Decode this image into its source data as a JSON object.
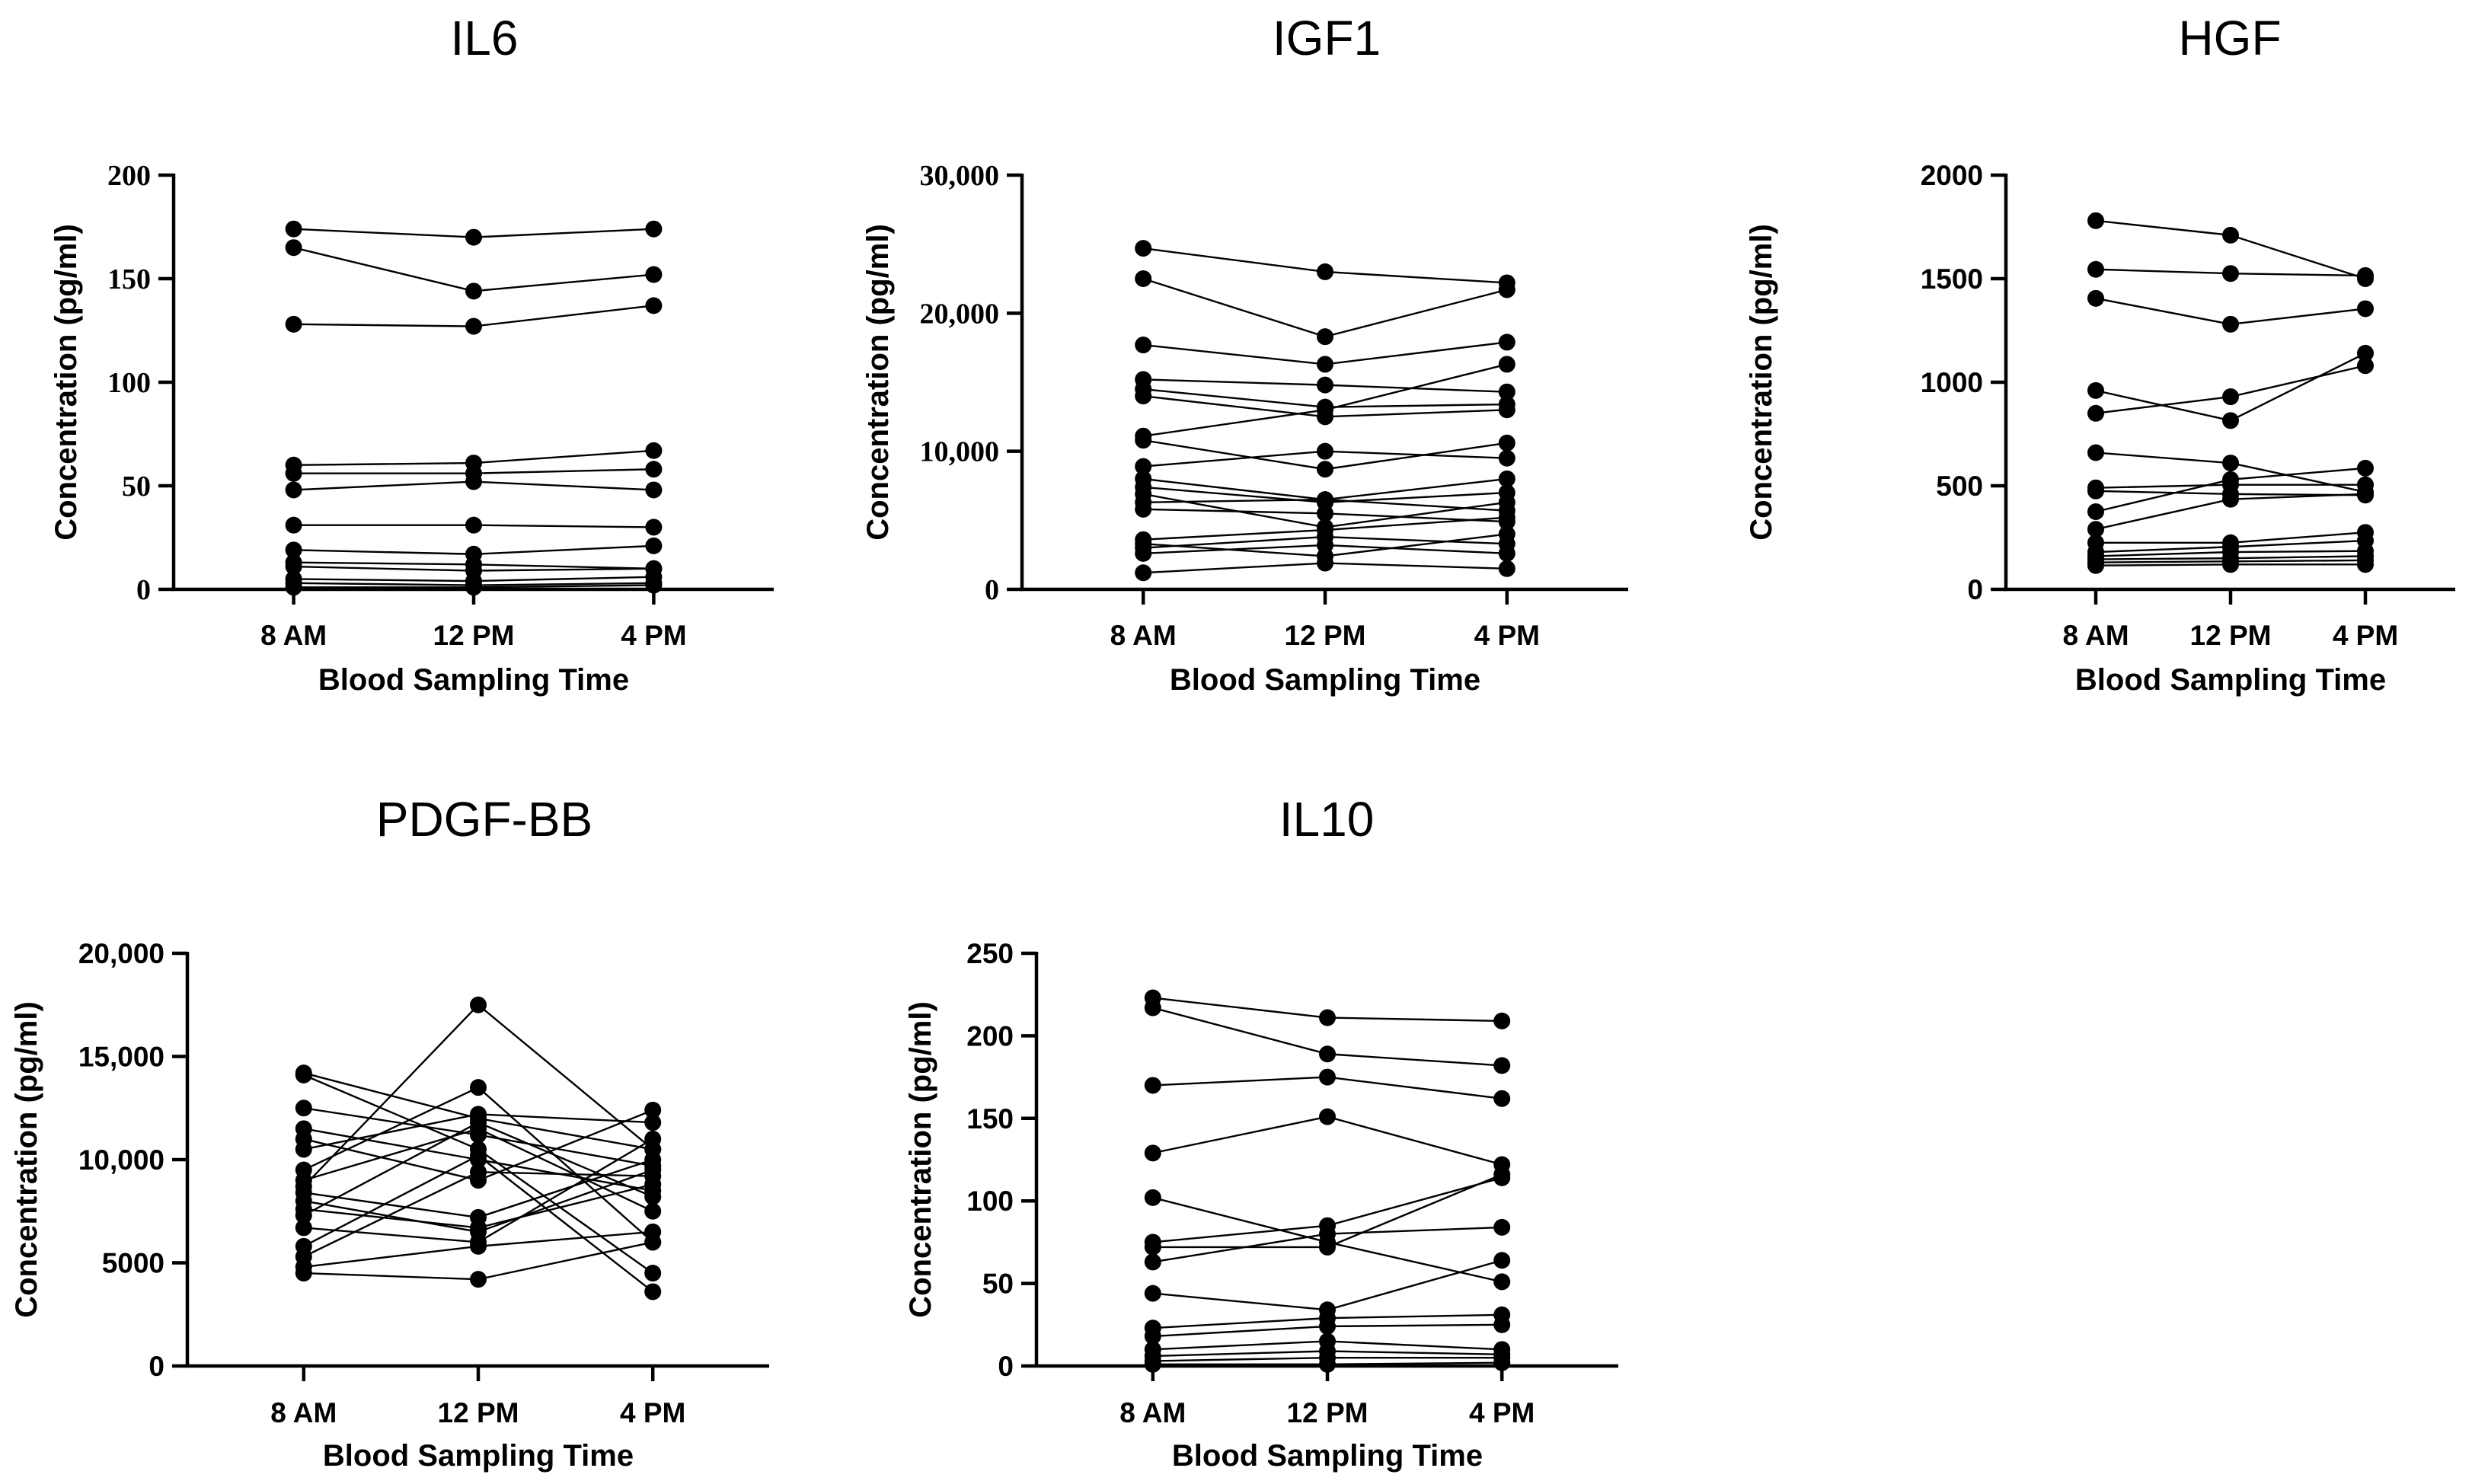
{
  "chart_data": [
    {
      "type": "line",
      "title": "IL6",
      "xlabel": "Blood Sampling Time",
      "ylabel": "Concentration (pg/ml)",
      "categories": [
        "8 AM",
        "12 PM",
        "4 PM"
      ],
      "ylim": [
        0,
        200
      ],
      "yticks": [
        0,
        50,
        100,
        150,
        200
      ],
      "ytick_labels": [
        "0",
        "50",
        "100",
        "150",
        "200"
      ],
      "series": [
        {
          "values": [
            174,
            170,
            174
          ]
        },
        {
          "values": [
            165,
            144,
            152
          ]
        },
        {
          "values": [
            128,
            127,
            137
          ]
        },
        {
          "values": [
            60,
            61,
            67
          ]
        },
        {
          "values": [
            56,
            56,
            58
          ]
        },
        {
          "values": [
            48,
            52,
            48
          ]
        },
        {
          "values": [
            31,
            31,
            30
          ]
        },
        {
          "values": [
            19,
            17,
            21
          ]
        },
        {
          "values": [
            13,
            12,
            10
          ]
        },
        {
          "values": [
            11,
            9,
            10
          ]
        },
        {
          "values": [
            5,
            4,
            6
          ]
        },
        {
          "values": [
            3,
            2,
            3
          ]
        },
        {
          "values": [
            1,
            1,
            2
          ]
        }
      ]
    },
    {
      "type": "line",
      "title": "IGF1",
      "xlabel": "Blood Sampling Time",
      "ylabel": "Concentration (pg/ml)",
      "categories": [
        "8 AM",
        "12 PM",
        "4 PM"
      ],
      "ylim": [
        0,
        30000
      ],
      "yticks": [
        0,
        10000,
        20000,
        30000
      ],
      "ytick_labels": [
        "0",
        "10,000",
        "20,000",
        "30,000"
      ],
      "series": [
        {
          "values": [
            24700,
            23000,
            22200
          ]
        },
        {
          "values": [
            22500,
            18300,
            21700
          ]
        },
        {
          "values": [
            17700,
            16300,
            17900
          ]
        },
        {
          "values": [
            15200,
            14800,
            14300
          ]
        },
        {
          "values": [
            14500,
            13200,
            13400
          ]
        },
        {
          "values": [
            14000,
            12500,
            13000
          ]
        },
        {
          "values": [
            11100,
            13000,
            16300
          ]
        },
        {
          "values": [
            10800,
            8700,
            10600
          ]
        },
        {
          "values": [
            8900,
            10000,
            9500
          ]
        },
        {
          "values": [
            8000,
            6500,
            8000
          ]
        },
        {
          "values": [
            7400,
            6300,
            7000
          ]
        },
        {
          "values": [
            6900,
            4500,
            6300
          ]
        },
        {
          "values": [
            6300,
            6500,
            5700
          ]
        },
        {
          "values": [
            5800,
            5500,
            4900
          ]
        },
        {
          "values": [
            3600,
            4300,
            5200
          ]
        },
        {
          "values": [
            3300,
            2400,
            4000
          ]
        },
        {
          "values": [
            3000,
            3800,
            3300
          ]
        },
        {
          "values": [
            2600,
            3200,
            2600
          ]
        },
        {
          "values": [
            1200,
            1900,
            1500
          ]
        }
      ]
    },
    {
      "type": "line",
      "title": "HGF",
      "xlabel": "Blood Sampling Time",
      "ylabel": "Concentration (pg/ml)",
      "categories": [
        "8 AM",
        "12 PM",
        "4 PM"
      ],
      "ylim": [
        0,
        2000
      ],
      "yticks": [
        0,
        500,
        1000,
        1500,
        2000
      ],
      "ytick_labels": [
        "0",
        "500",
        "1000",
        "1500",
        "2000"
      ],
      "series": [
        {
          "values": [
            1780,
            1710,
            1500
          ]
        },
        {
          "values": [
            1545,
            1525,
            1515
          ]
        },
        {
          "values": [
            1405,
            1280,
            1355
          ]
        },
        {
          "values": [
            960,
            815,
            1140
          ]
        },
        {
          "values": [
            850,
            930,
            1080
          ]
        },
        {
          "values": [
            660,
            610,
            470
          ]
        },
        {
          "values": [
            490,
            505,
            505
          ]
        },
        {
          "values": [
            475,
            460,
            455
          ]
        },
        {
          "values": [
            375,
            530,
            585
          ]
        },
        {
          "values": [
            290,
            435,
            460
          ]
        },
        {
          "values": [
            225,
            225,
            275
          ]
        },
        {
          "values": [
            180,
            205,
            235
          ]
        },
        {
          "values": [
            160,
            180,
            185
          ]
        },
        {
          "values": [
            145,
            150,
            160
          ]
        },
        {
          "values": [
            130,
            135,
            140
          ]
        },
        {
          "values": [
            115,
            120,
            120
          ]
        }
      ]
    },
    {
      "type": "line",
      "title": "PDGF-BB",
      "xlabel": "Blood Sampling Time",
      "ylabel": "Concentration (pg/ml)",
      "categories": [
        "8 AM",
        "12 PM",
        "4 PM"
      ],
      "ylim": [
        0,
        20000
      ],
      "yticks": [
        0,
        5000,
        10000,
        15000,
        20000
      ],
      "ytick_labels": [
        "0",
        "5000",
        "10,000",
        "15,000",
        "20,000"
      ],
      "series": [
        {
          "values": [
            14200,
            12000,
            10500
          ]
        },
        {
          "values": [
            14100,
            10500,
            4500
          ]
        },
        {
          "values": [
            12500,
            11200,
            9700
          ]
        },
        {
          "values": [
            11500,
            10000,
            8500
          ]
        },
        {
          "values": [
            11000,
            9000,
            12400
          ]
        },
        {
          "values": [
            10500,
            12200,
            11800
          ]
        },
        {
          "values": [
            9500,
            13500,
            6000
          ]
        },
        {
          "values": [
            9000,
            11500,
            7500
          ]
        },
        {
          "values": [
            8700,
            17500,
            10500
          ]
        },
        {
          "values": [
            8400,
            7200,
            10000
          ]
        },
        {
          "values": [
            8000,
            6500,
            9500
          ]
        },
        {
          "values": [
            7600,
            6700,
            8800
          ]
        },
        {
          "values": [
            7300,
            11800,
            8200
          ]
        },
        {
          "values": [
            6700,
            6000,
            11000
          ]
        },
        {
          "values": [
            5800,
            10200,
            3600
          ]
        },
        {
          "values": [
            5300,
            9400,
            9200
          ]
        },
        {
          "values": [
            4800,
            5800,
            6500
          ]
        },
        {
          "values": [
            4500,
            4200,
            6000
          ]
        }
      ]
    },
    {
      "type": "line",
      "title": "IL10",
      "xlabel": "Blood Sampling Time",
      "ylabel": "Concentration (pg/ml)",
      "categories": [
        "8 AM",
        "12 PM",
        "4 PM"
      ],
      "ylim": [
        0,
        250
      ],
      "yticks": [
        0,
        50,
        100,
        150,
        200,
        250
      ],
      "ytick_labels": [
        "0",
        "50",
        "100",
        "150",
        "200",
        "250"
      ],
      "series": [
        {
          "values": [
            223,
            211,
            209
          ]
        },
        {
          "values": [
            217,
            189,
            182
          ]
        },
        {
          "values": [
            170,
            175,
            162
          ]
        },
        {
          "values": [
            129,
            151,
            122
          ]
        },
        {
          "values": [
            102,
            75,
            51
          ]
        },
        {
          "values": [
            75,
            85,
            114
          ]
        },
        {
          "values": [
            72,
            72,
            116
          ]
        },
        {
          "values": [
            63,
            80,
            84
          ]
        },
        {
          "values": [
            44,
            34,
            64
          ]
        },
        {
          "values": [
            23,
            29,
            31
          ]
        },
        {
          "values": [
            18,
            24,
            25
          ]
        },
        {
          "values": [
            10,
            15,
            10
          ]
        },
        {
          "values": [
            6,
            9,
            7
          ]
        },
        {
          "values": [
            3,
            5,
            5
          ]
        },
        {
          "values": [
            1,
            1,
            2
          ]
        }
      ]
    }
  ]
}
